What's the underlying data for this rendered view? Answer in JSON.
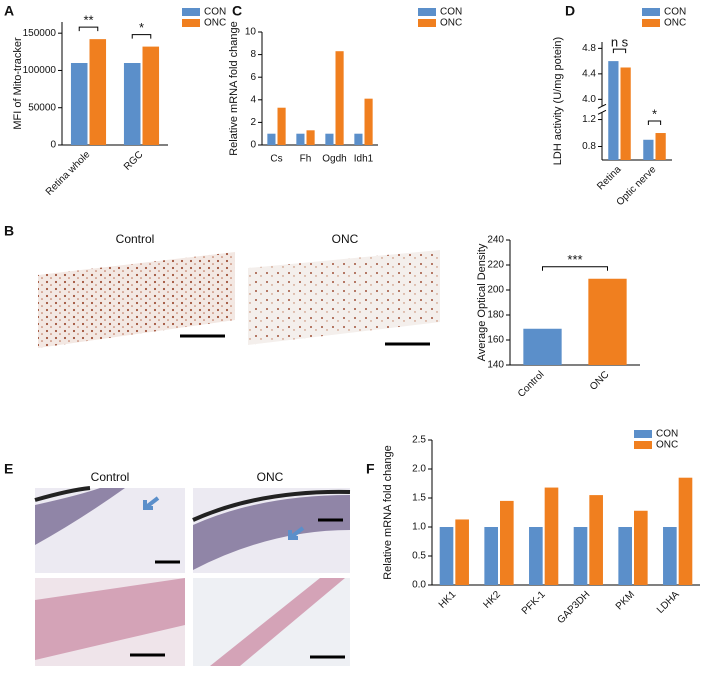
{
  "panel_labels": [
    "A",
    "B",
    "C",
    "D",
    "E",
    "F"
  ],
  "image_captions": {
    "B": [
      "Control",
      "ONC"
    ],
    "E": [
      "Control",
      "ONC"
    ]
  },
  "chart_data": [
    {
      "type": "bar",
      "ylabel": "MFI of Mito-tracker",
      "categories": [
        "Retina whole",
        "RGC"
      ],
      "series": [
        {
          "name": "CON",
          "color": "#5b8fca",
          "values": [
            110000,
            110000
          ]
        },
        {
          "name": "ONC",
          "color": "#f07f1f",
          "values": [
            142000,
            132000
          ]
        }
      ],
      "ylim": [
        0,
        165000
      ],
      "yticks": [
        0,
        50000,
        100000,
        150000
      ],
      "significance": [
        "**",
        "*"
      ],
      "legend": true
    },
    {
      "type": "bar",
      "ylabel": "Relative mRNA fold change",
      "categories": [
        "Cs",
        "Fh",
        "Ogdh",
        "Idh1"
      ],
      "series": [
        {
          "name": "CON",
          "color": "#5b8fca",
          "values": [
            1,
            1,
            1,
            1
          ]
        },
        {
          "name": "ONC",
          "color": "#f07f1f",
          "values": [
            3.3,
            1.3,
            8.3,
            4.1
          ]
        }
      ],
      "ylim": [
        0,
        10
      ],
      "yticks": [
        0,
        2,
        4,
        6,
        8,
        10
      ],
      "legend": true
    },
    {
      "type": "bar",
      "ylabel": "LDH activity (U/mg potein)",
      "categories": [
        "Retina",
        "Optic nerve"
      ],
      "series": [
        {
          "name": "CON",
          "color": "#5b8fca",
          "values": [
            4.6,
            0.9
          ]
        },
        {
          "name": "ONC",
          "color": "#f07f1f",
          "values": [
            4.5,
            1.0
          ]
        }
      ],
      "ylim": [
        0.6,
        4.9
      ],
      "ybreak": [
        1.3,
        3.9
      ],
      "yticks": [
        0.8,
        1.2,
        {
          "value": 4.0,
          "label": "4.0"
        },
        4.4,
        4.8
      ],
      "significance": [
        "n s",
        "*"
      ],
      "legend": true
    },
    {
      "type": "bar",
      "ylabel": "Average Optical Density",
      "categories": [
        "Control",
        "ONC"
      ],
      "colors": [
        "#5b8fca",
        "#f07f1f"
      ],
      "values": [
        169,
        209
      ],
      "ylim": [
        140,
        240
      ],
      "yticks": [
        140,
        160,
        180,
        200,
        220,
        240
      ],
      "significance": [
        "***"
      ]
    },
    {
      "type": "bar",
      "ylabel": "Relative mRNA fold change",
      "categories": [
        "HK1",
        "HK2",
        "PFK-1",
        "GAP3DH",
        "PKM",
        "LDHA"
      ],
      "series": [
        {
          "name": "CON",
          "color": "#5b8fca",
          "values": [
            1,
            1,
            1,
            1,
            1,
            1
          ]
        },
        {
          "name": "ONC",
          "color": "#f07f1f",
          "values": [
            1.13,
            1.45,
            1.68,
            1.55,
            1.28,
            1.85
          ]
        }
      ],
      "ylim": [
        0,
        2.5
      ],
      "yticks": [
        {
          "value": 0,
          "label": "0.0"
        },
        0.5,
        {
          "value": 1,
          "label": "1.0"
        },
        1.5,
        {
          "value": 2,
          "label": "2.0"
        },
        2.5
      ],
      "legend": true
    }
  ]
}
